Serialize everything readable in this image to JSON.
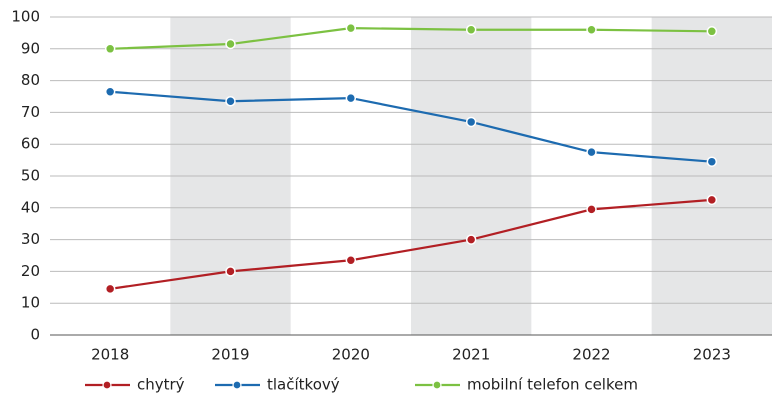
{
  "chart_data": {
    "type": "line",
    "categories": [
      "2018",
      "2019",
      "2020",
      "2021",
      "2022",
      "2023"
    ],
    "series": [
      {
        "name": "chytrý",
        "color": "#b21f24",
        "values": [
          14.5,
          20,
          23.5,
          30,
          39.5,
          42.5
        ]
      },
      {
        "name": "tlačítkový",
        "color": "#1d6bb0",
        "values": [
          76.5,
          73.5,
          74.5,
          67,
          57.5,
          54.5
        ]
      },
      {
        "name": "mobilní telefon celkem",
        "color": "#7cc142",
        "values": [
          90,
          91.5,
          96.5,
          96,
          96,
          95.5
        ]
      }
    ],
    "ylim": [
      0,
      100
    ],
    "yticks": [
      0,
      10,
      20,
      30,
      40,
      50,
      60,
      70,
      80,
      90,
      100
    ],
    "grid": true
  }
}
